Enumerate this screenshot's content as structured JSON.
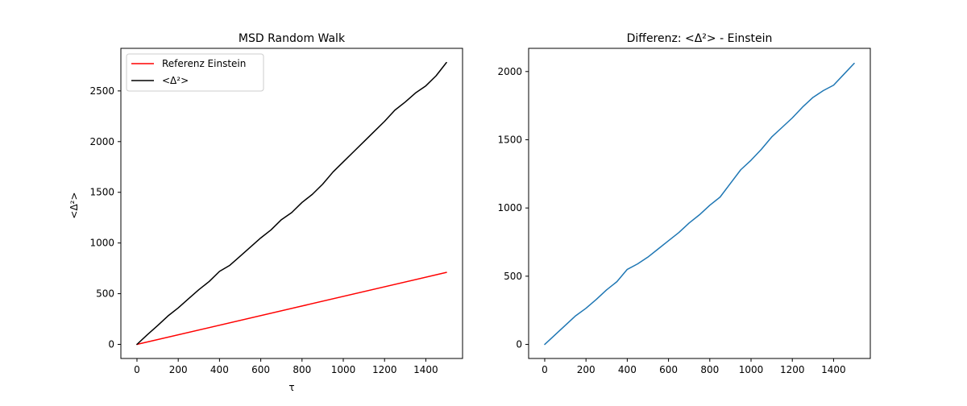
{
  "chart_data": [
    {
      "type": "line",
      "title": "MSD Random Walk",
      "xlabel": "τ",
      "ylabel": "<Δ²>",
      "xlim": [
        -78,
        1578
      ],
      "ylim": [
        -139,
        2920
      ],
      "x_ticks": [
        0,
        200,
        400,
        600,
        800,
        1000,
        1200,
        1400
      ],
      "y_ticks": [
        0,
        500,
        1000,
        1500,
        2000,
        2500
      ],
      "grid": false,
      "legend": "top-left",
      "series": [
        {
          "name": "Referenz Einstein",
          "color": "#ff0000",
          "x": [
            0,
            1500
          ],
          "y": [
            0,
            710
          ]
        },
        {
          "name": "<Δ²>",
          "color": "#000000",
          "x": [
            0,
            50,
            100,
            150,
            200,
            250,
            300,
            350,
            400,
            450,
            500,
            550,
            600,
            650,
            700,
            750,
            800,
            850,
            900,
            950,
            1000,
            1050,
            1100,
            1150,
            1200,
            1250,
            1300,
            1350,
            1400,
            1450,
            1500
          ],
          "y": [
            0,
            95,
            185,
            280,
            360,
            450,
            540,
            620,
            720,
            780,
            870,
            960,
            1050,
            1130,
            1230,
            1300,
            1400,
            1480,
            1580,
            1700,
            1800,
            1900,
            2000,
            2100,
            2200,
            2310,
            2390,
            2480,
            2550,
            2650,
            2780
          ]
        }
      ]
    },
    {
      "type": "line",
      "title": "Differenz: <Δ²> - Einstein",
      "xlabel": "",
      "ylabel": "",
      "xlim": [
        -78,
        1578
      ],
      "ylim": [
        -103,
        2170
      ],
      "x_ticks": [
        0,
        200,
        400,
        600,
        800,
        1000,
        1200,
        1400
      ],
      "y_ticks": [
        0,
        500,
        1000,
        1500,
        2000
      ],
      "grid": false,
      "series": [
        {
          "color": "#1f77b4",
          "x": [
            0,
            50,
            100,
            150,
            200,
            250,
            300,
            350,
            400,
            450,
            500,
            550,
            600,
            650,
            700,
            750,
            800,
            850,
            900,
            950,
            1000,
            1050,
            1100,
            1150,
            1200,
            1250,
            1300,
            1350,
            1400,
            1450,
            1500
          ],
          "y": [
            0,
            70,
            140,
            210,
            265,
            330,
            400,
            460,
            550,
            590,
            640,
            700,
            760,
            820,
            890,
            950,
            1020,
            1080,
            1180,
            1280,
            1350,
            1430,
            1520,
            1590,
            1660,
            1740,
            1810,
            1860,
            1900,
            1980,
            2060
          ]
        }
      ]
    }
  ]
}
